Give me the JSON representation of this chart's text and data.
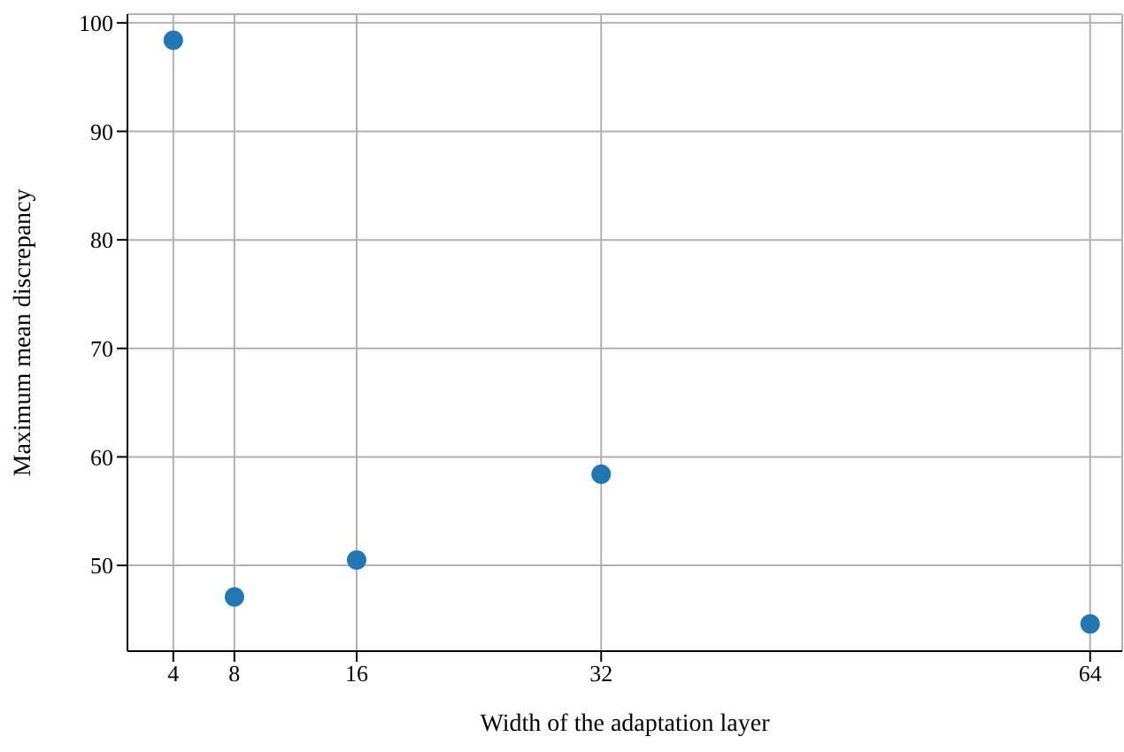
{
  "chart_data": {
    "type": "scatter",
    "xlabel": "Width of the adaptation layer",
    "ylabel": "Maximum mean discrepancy",
    "x": [
      4,
      8,
      16,
      32,
      64
    ],
    "series": [
      {
        "color": "#1f77b4",
        "values": [
          98.4,
          47.1,
          50.5,
          58.4,
          44.6
        ]
      }
    ],
    "xlim": [
      1,
      66.1
    ],
    "xticks": [
      4,
      8,
      16,
      32,
      64
    ],
    "ylim": [
      42.1,
      100.8
    ],
    "yticks": [
      50,
      60,
      70,
      80,
      90,
      100
    ],
    "grid": true,
    "marker": "circle",
    "legend": false
  }
}
